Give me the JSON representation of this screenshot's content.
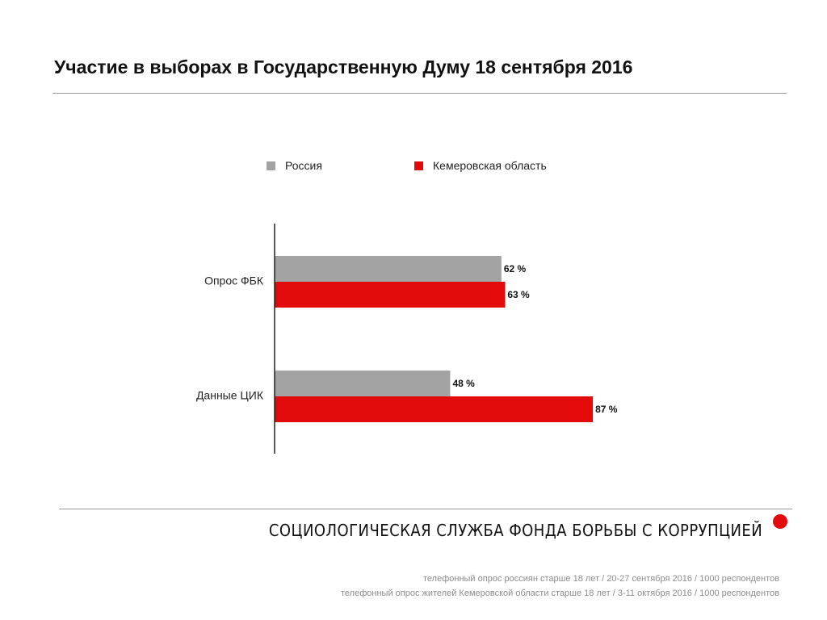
{
  "chart_data": {
    "type": "bar",
    "orientation": "horizontal",
    "title": "Участие в выборах в Государственную Думу 18 сентября 2016",
    "categories": [
      "Опрос ФБК",
      "Данные ЦИК"
    ],
    "series": [
      {
        "name": "Россия",
        "color": "#a3a3a3",
        "values": [
          62,
          48
        ],
        "labels": [
          "62 %",
          "48 %"
        ]
      },
      {
        "name": "Кемеровская область",
        "color": "#e20a0a",
        "values": [
          63,
          87
        ],
        "labels": [
          "63 %",
          "87 %"
        ]
      }
    ],
    "xlim": [
      0,
      100
    ],
    "xlabel": "",
    "ylabel": "",
    "grid": false,
    "legend_position": "top"
  },
  "footer": {
    "brand": "СОЦИОЛОГИЧЕСКАЯ СЛУЖБА ФОНДА БОРЬБЫ С КОРРУПЦИЕЙ",
    "brand_color": "#e20a0a",
    "note_1": "телефонный опрос россиян старше 18 лет / 20-27 сентября 2016 / 1000 респондентов",
    "note_2": "телефонный опрос жителей Кемеровской области старше 18 лет / 3-11 октября 2016 / 1000 респондентов"
  }
}
